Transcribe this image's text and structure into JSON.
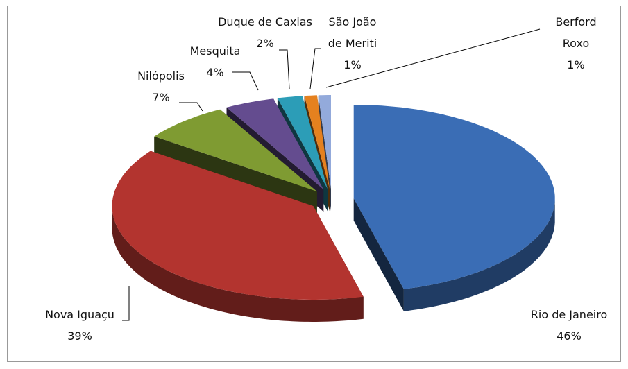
{
  "chart_data": {
    "type": "pie",
    "categories": [
      "Rio de Janeiro",
      "Nova Iguaçu",
      "Nilópolis",
      "Mesquita",
      "Duque de Caxias",
      "São João de Meriti",
      "Berford Roxo"
    ],
    "values": [
      46,
      39,
      7,
      4,
      2,
      1,
      1
    ],
    "value_labels": [
      "46%",
      "39%",
      "7%",
      "4%",
      "2%",
      "1%",
      "1%"
    ],
    "colors": [
      "#3a6db5",
      "#b3342f",
      "#7f9b32",
      "#644c8f",
      "#2c9db7",
      "#e5811f",
      "#93aadb"
    ],
    "exploded": true,
    "three_d": true
  }
}
